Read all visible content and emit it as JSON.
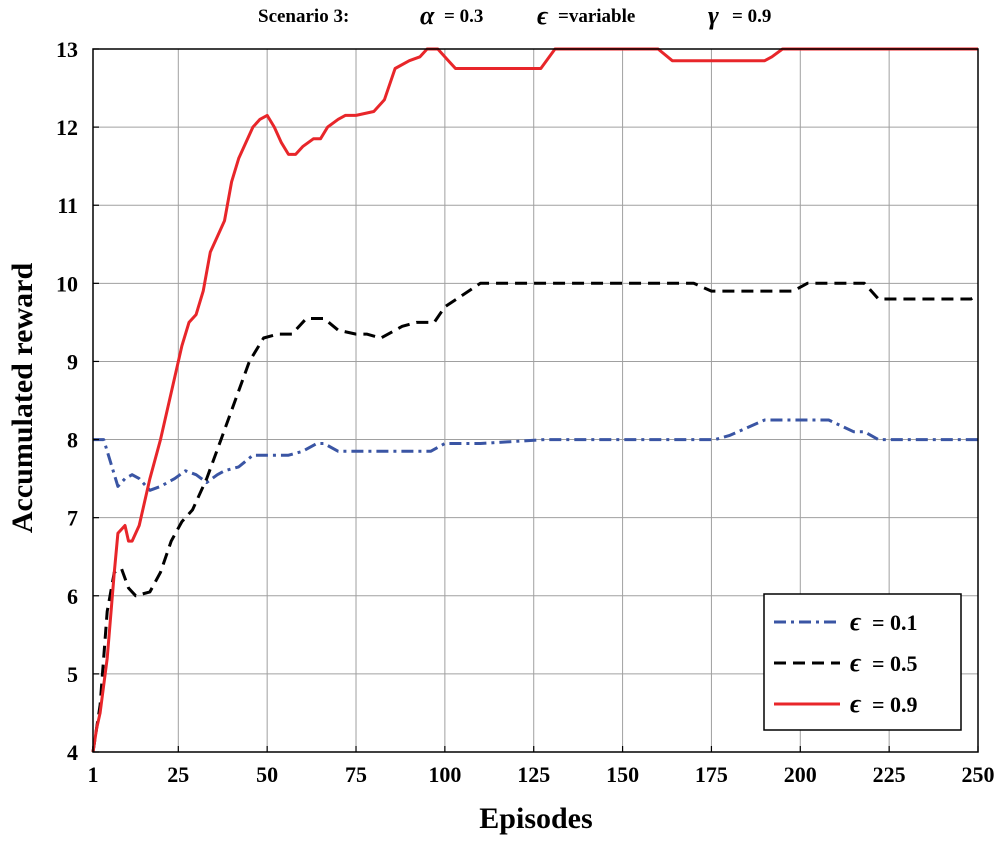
{
  "chart_data": {
    "type": "line",
    "title": {
      "prefix": "Scenario 3:",
      "alpha_symbol": "α",
      "alpha_text": "= 0.3",
      "epsilon_symbol": "ϵ",
      "epsilon_text": "=variable",
      "gamma_symbol": "γ",
      "gamma_text": "= 0.9"
    },
    "xlabel": "Episodes",
    "ylabel": "Accumulated reward",
    "xlim": [
      1,
      250
    ],
    "ylim": [
      4,
      13
    ],
    "x_ticks": [
      1,
      25,
      50,
      75,
      100,
      125,
      150,
      175,
      200,
      225,
      250
    ],
    "y_ticks": [
      4,
      5,
      6,
      7,
      8,
      9,
      10,
      11,
      12,
      13
    ],
    "grid": true,
    "legend_position": "bottom-right",
    "series": [
      {
        "name": "ϵ = 0.1",
        "legend_symbol": "ϵ",
        "legend_value": "= 0.1",
        "color": "#3a55a4",
        "style": "dashdot",
        "points": [
          [
            1,
            8.0
          ],
          [
            4,
            8.0
          ],
          [
            6,
            7.7
          ],
          [
            8,
            7.4
          ],
          [
            10,
            7.5
          ],
          [
            12,
            7.55
          ],
          [
            14,
            7.5
          ],
          [
            17,
            7.35
          ],
          [
            20,
            7.4
          ],
          [
            24,
            7.5
          ],
          [
            27,
            7.6
          ],
          [
            30,
            7.55
          ],
          [
            33,
            7.45
          ],
          [
            36,
            7.55
          ],
          [
            38,
            7.6
          ],
          [
            42,
            7.65
          ],
          [
            46,
            7.8
          ],
          [
            50,
            7.8
          ],
          [
            56,
            7.8
          ],
          [
            60,
            7.85
          ],
          [
            64,
            7.95
          ],
          [
            66,
            7.95
          ],
          [
            70,
            7.85
          ],
          [
            75,
            7.85
          ],
          [
            88,
            7.85
          ],
          [
            92,
            7.85
          ],
          [
            96,
            7.85
          ],
          [
            100,
            7.95
          ],
          [
            110,
            7.95
          ],
          [
            128,
            8.0
          ],
          [
            176,
            8.0
          ],
          [
            180,
            8.05
          ],
          [
            185,
            8.15
          ],
          [
            190,
            8.25
          ],
          [
            195,
            8.25
          ],
          [
            208,
            8.25
          ],
          [
            215,
            8.1
          ],
          [
            218,
            8.1
          ],
          [
            222,
            8.0
          ],
          [
            250,
            8.0
          ]
        ]
      },
      {
        "name": "ϵ = 0.5",
        "legend_symbol": "ϵ",
        "legend_value": "= 0.5",
        "color": "#000000",
        "style": "dashed",
        "points": [
          [
            1,
            4.0
          ],
          [
            3,
            4.6
          ],
          [
            5,
            5.8
          ],
          [
            7,
            6.3
          ],
          [
            9,
            6.35
          ],
          [
            11,
            6.1
          ],
          [
            13,
            6.0
          ],
          [
            17,
            6.05
          ],
          [
            20,
            6.3
          ],
          [
            23,
            6.7
          ],
          [
            26,
            6.95
          ],
          [
            29,
            7.1
          ],
          [
            33,
            7.5
          ],
          [
            37,
            8.0
          ],
          [
            41,
            8.5
          ],
          [
            45,
            9.0
          ],
          [
            49,
            9.3
          ],
          [
            53,
            9.35
          ],
          [
            57,
            9.35
          ],
          [
            61,
            9.55
          ],
          [
            66,
            9.55
          ],
          [
            70,
            9.4
          ],
          [
            75,
            9.35
          ],
          [
            78,
            9.35
          ],
          [
            82,
            9.3
          ],
          [
            88,
            9.45
          ],
          [
            92,
            9.5
          ],
          [
            97,
            9.5
          ],
          [
            100,
            9.7
          ],
          [
            105,
            9.85
          ],
          [
            110,
            10.0
          ],
          [
            170,
            10.0
          ],
          [
            175,
            9.9
          ],
          [
            198,
            9.9
          ],
          [
            202,
            10.0
          ],
          [
            218,
            10.0
          ],
          [
            222,
            9.8
          ],
          [
            248,
            9.8
          ],
          [
            250,
            9.85
          ]
        ]
      },
      {
        "name": "ϵ = 0.9",
        "legend_symbol": "ϵ",
        "legend_value": "= 0.9",
        "color": "#e8262a",
        "style": "solid",
        "points": [
          [
            1,
            4.0
          ],
          [
            2,
            4.3
          ],
          [
            3,
            4.5
          ],
          [
            5,
            5.2
          ],
          [
            7,
            6.3
          ],
          [
            8,
            6.8
          ],
          [
            10,
            6.9
          ],
          [
            11,
            6.7
          ],
          [
            12,
            6.7
          ],
          [
            14,
            6.9
          ],
          [
            17,
            7.5
          ],
          [
            20,
            8.0
          ],
          [
            23,
            8.6
          ],
          [
            26,
            9.2
          ],
          [
            28,
            9.5
          ],
          [
            30,
            9.6
          ],
          [
            32,
            9.9
          ],
          [
            34,
            10.4
          ],
          [
            36,
            10.6
          ],
          [
            38,
            10.8
          ],
          [
            40,
            11.3
          ],
          [
            42,
            11.6
          ],
          [
            44,
            11.8
          ],
          [
            46,
            12.0
          ],
          [
            48,
            12.1
          ],
          [
            50,
            12.15
          ],
          [
            52,
            12.0
          ],
          [
            54,
            11.8
          ],
          [
            56,
            11.65
          ],
          [
            58,
            11.65
          ],
          [
            60,
            11.75
          ],
          [
            63,
            11.85
          ],
          [
            65,
            11.85
          ],
          [
            67,
            12.0
          ],
          [
            70,
            12.1
          ],
          [
            72,
            12.15
          ],
          [
            75,
            12.15
          ],
          [
            80,
            12.2
          ],
          [
            83,
            12.35
          ],
          [
            86,
            12.75
          ],
          [
            90,
            12.85
          ],
          [
            93,
            12.9
          ],
          [
            95,
            13.0
          ],
          [
            98,
            13.0
          ],
          [
            101,
            12.85
          ],
          [
            103,
            12.75
          ],
          [
            127,
            12.75
          ],
          [
            131,
            13.0
          ],
          [
            160,
            13.0
          ],
          [
            164,
            12.85
          ],
          [
            190,
            12.85
          ],
          [
            192,
            12.9
          ],
          [
            195,
            13.0
          ],
          [
            250,
            13.0
          ]
        ]
      }
    ]
  }
}
